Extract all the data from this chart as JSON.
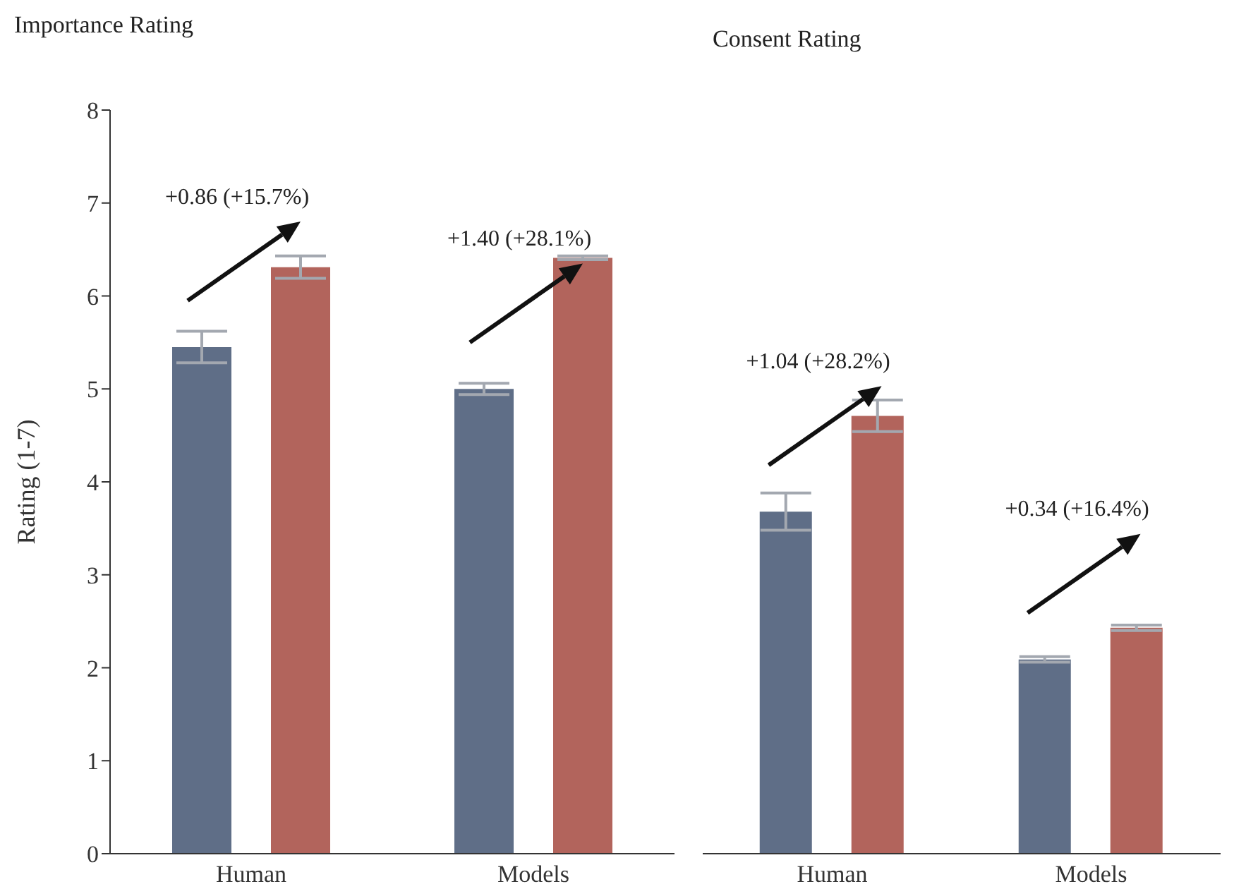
{
  "chart_data": [
    {
      "type": "bar",
      "title": "Importance Rating",
      "ylabel": "Rating (1-7)",
      "categories": [
        "Human",
        "Models"
      ],
      "series": [
        {
          "color": "#5f6e87",
          "values": [
            5.45,
            5.0
          ],
          "errors": [
            0.17,
            0.06
          ]
        },
        {
          "color": "#b2645c",
          "values": [
            6.31,
            6.41
          ],
          "errors": [
            0.12,
            0.02
          ]
        }
      ],
      "ylim": [
        0,
        8
      ],
      "yticks": [
        0,
        1,
        2,
        3,
        4,
        5,
        6,
        7,
        8
      ],
      "grid": false,
      "legend": false,
      "annotations": [
        "+0.86 (+15.7%)",
        "+1.40 (+28.1%)"
      ]
    },
    {
      "type": "bar",
      "title": "Consent Rating",
      "categories": [
        "Human",
        "Models"
      ],
      "series": [
        {
          "color": "#5f6e87",
          "values": [
            3.68,
            2.09
          ],
          "errors": [
            0.2,
            0.03
          ]
        },
        {
          "color": "#b2645c",
          "values": [
            4.71,
            2.43
          ],
          "errors": [
            0.17,
            0.03
          ]
        }
      ],
      "ylim": [
        0,
        8
      ],
      "yticks": [
        0,
        1,
        2,
        3,
        4,
        5,
        6,
        7,
        8
      ],
      "tick_labels": "x",
      "grid": false,
      "legend": false,
      "annotations": [
        "+1.04 (+28.2%)",
        "+0.34 (+16.4%)"
      ]
    }
  ]
}
